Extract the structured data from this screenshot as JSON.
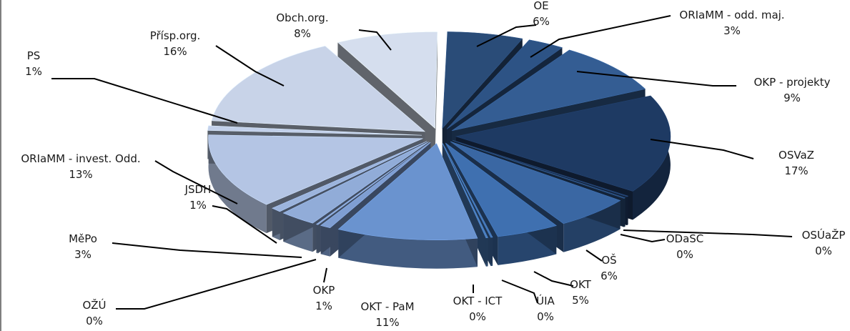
{
  "chart_data": {
    "type": "pie",
    "title": "",
    "slices": [
      {
        "name": "OE",
        "value": 6,
        "label": "6%",
        "color": "#2a4c78"
      },
      {
        "name": "ORIaMM - odd. maj.",
        "value": 3,
        "label": "3%",
        "color": "#2d5385"
      },
      {
        "name": "OKP - projekty",
        "value": 9,
        "label": "9%",
        "color": "#345d93"
      },
      {
        "name": "OSVaZ",
        "value": 17,
        "label": "17%",
        "color": "#1e3a63"
      },
      {
        "name": "OSÚaŽP",
        "value": 0,
        "label": "0%",
        "color": "#213f6a"
      },
      {
        "name": "ODaSČ",
        "value": 0,
        "label": "0%",
        "color": "#2a4d7c"
      },
      {
        "name": "OŠ",
        "value": 6,
        "label": "6%",
        "color": "#3a67a3"
      },
      {
        "name": "OKT",
        "value": 5,
        "label": "5%",
        "color": "#3f70b0"
      },
      {
        "name": "ÚIA",
        "value": 0,
        "label": "0%",
        "color": "#4476b6"
      },
      {
        "name": "OKT - ICT",
        "value": 0,
        "label": "0%",
        "color": "#4a7dbd"
      },
      {
        "name": "OKT - PaM",
        "value": 11,
        "label": "11%",
        "color": "#6a93cf"
      },
      {
        "name": "OKP",
        "value": 1,
        "label": "1%",
        "color": "#7f9ed2"
      },
      {
        "name": "OŽÚ",
        "value": 0,
        "label": "0%",
        "color": "#89a6d6"
      },
      {
        "name": "MěPo",
        "value": 3,
        "label": "3%",
        "color": "#91acd8"
      },
      {
        "name": "JSDH",
        "value": 1,
        "label": "1%",
        "color": "#9cb4dc"
      },
      {
        "name": "ORIaMM - invest. Odd.",
        "value": 13,
        "label": "13%",
        "color": "#b4c5e4"
      },
      {
        "name": "PS",
        "value": 1,
        "label": "1%",
        "color": "#c2d0ea"
      },
      {
        "name": "Přísp.org.",
        "value": 16,
        "label": "16%",
        "color": "#c8d3e8"
      },
      {
        "name": "Obch.org.",
        "value": 8,
        "label": "8%",
        "color": "#d5deee"
      }
    ]
  }
}
